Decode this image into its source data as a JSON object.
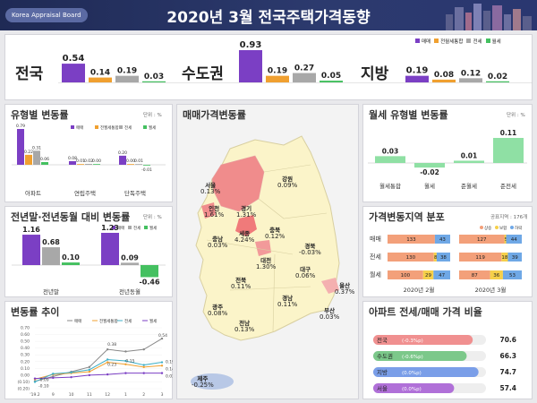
{
  "header": {
    "badge": "Korea Appraisal Board",
    "title": "2020년 3월  전국주택가격동향"
  },
  "colors": {
    "sale": "#7b3fc4",
    "jeonse_sale": "#f0a030",
    "jeonse": "#a8a8a8",
    "monthly": "#44c060"
  },
  "legend": {
    "sale": "매매",
    "jeonse_sale": "전월세통합",
    "jeonse": "전세",
    "monthly": "월세"
  },
  "summary": [
    {
      "region": "전국",
      "values": [
        0.54,
        0.14,
        0.19,
        0.03
      ]
    },
    {
      "region": "수도권",
      "values": [
        0.93,
        0.19,
        0.27,
        0.05
      ]
    },
    {
      "region": "지방",
      "values": [
        0.19,
        0.08,
        0.12,
        0.02
      ]
    }
  ],
  "type_change": {
    "title": "유형별 변동률",
    "unit": "단위 : %",
    "chart_data": {
      "type": "bar",
      "categories": [
        "아파트",
        "연립주택",
        "단독주택"
      ],
      "series": [
        {
          "name": "매매",
          "values": [
            0.79,
            0.08,
            0.2
          ]
        },
        {
          "name": "전월세통합",
          "values": [
            0.22,
            0.01,
            0.0
          ]
        },
        {
          "name": "전세",
          "values": [
            0.31,
            0.02,
            0.01
          ]
        },
        {
          "name": "월세",
          "values": [
            0.06,
            0.0,
            -0.01
          ]
        }
      ]
    }
  },
  "year_change": {
    "title": "전년말·전년동월 대비 변동률",
    "unit": "단위 : %",
    "chart_data": {
      "type": "bar",
      "categories": [
        "전년말",
        "전년동월"
      ],
      "series": [
        {
          "name": "매매",
          "values": [
            1.16,
            1.23
          ]
        },
        {
          "name": "전세",
          "values": [
            0.68,
            0.09
          ]
        },
        {
          "name": "월세",
          "values": [
            0.1,
            -0.46
          ]
        }
      ]
    }
  },
  "trend": {
    "title": "변동률 추이",
    "chart_data": {
      "type": "line",
      "categories": [
        "'19.2",
        "9",
        "10",
        "11",
        "12",
        "1",
        "2",
        "3"
      ],
      "yticks": [
        "0.70",
        "0.60",
        "0.50",
        "0.40",
        "0.30",
        "0.20",
        "0.10",
        "0.00",
        "(0.10)",
        "(0.20)"
      ],
      "ylim": [
        -0.2,
        0.7
      ],
      "series": [
        {
          "name": "매매",
          "values": [
            -0.09,
            -0.02,
            0.05,
            0.12,
            0.38,
            0.35,
            0.38,
            0.54
          ]
        },
        {
          "name": "전월세통합",
          "values": [
            -0.06,
            0.01,
            0.03,
            0.05,
            0.19,
            0.16,
            0.12,
            0.14
          ]
        },
        {
          "name": "전세",
          "values": [
            -0.1,
            0.02,
            0.04,
            0.08,
            0.23,
            0.21,
            0.15,
            0.19
          ]
        },
        {
          "name": "월세",
          "values": [
            -0.05,
            -0.04,
            -0.03,
            0.0,
            0.01,
            0.03,
            0.03,
            0.03
          ]
        }
      ],
      "data_labels": [
        "0.54",
        "0.38",
        "0.23",
        "0.15",
        "0.19",
        "0.14",
        "0.03",
        "-0.09",
        "-0.10"
      ]
    }
  },
  "map": {
    "title": "매매가격변동률",
    "regions": [
      {
        "name": "서울",
        "value": "0.13%"
      },
      {
        "name": "인천",
        "value": "1.61%"
      },
      {
        "name": "경기",
        "value": "1.31%"
      },
      {
        "name": "강원",
        "value": "0.09%"
      },
      {
        "name": "충남",
        "value": "0.03%"
      },
      {
        "name": "세종",
        "value": "4.24%"
      },
      {
        "name": "충북",
        "value": "0.12%"
      },
      {
        "name": "대전",
        "value": "1.30%"
      },
      {
        "name": "경북",
        "value": "-0.03%"
      },
      {
        "name": "대구",
        "value": "0.06%"
      },
      {
        "name": "전북",
        "value": "0.11%"
      },
      {
        "name": "울산",
        "value": "0.37%"
      },
      {
        "name": "광주",
        "value": "0.08%"
      },
      {
        "name": "경남",
        "value": "0.11%"
      },
      {
        "name": "부산",
        "value": "0.03%"
      },
      {
        "name": "전남",
        "value": "0.13%"
      },
      {
        "name": "제주",
        "value": "-0.25%"
      }
    ]
  },
  "monthly_type": {
    "title": "월세 유형별 변동률",
    "unit": "단위 : %",
    "chart_data": {
      "type": "bar",
      "categories": [
        "월세통합",
        "월세",
        "준월세",
        "준전세"
      ],
      "values": [
        0.03,
        -0.02,
        0.01,
        0.11
      ]
    }
  },
  "distribution": {
    "title": "가격변동지역 분포",
    "unit": "공표지역 : 176개",
    "legend": [
      "상승",
      "보합",
      "하락"
    ],
    "periods": [
      "2020년 2월",
      "2020년 3월"
    ],
    "rows": [
      {
        "label": "매매",
        "feb": [
          133,
          0,
          43
        ],
        "mar": [
          127,
          5,
          44
        ]
      },
      {
        "label": "전세",
        "feb": [
          130,
          8,
          38
        ],
        "mar": [
          119,
          18,
          39
        ]
      },
      {
        "label": "월세",
        "feb": [
          100,
          29,
          47
        ],
        "mar": [
          87,
          36,
          53
        ]
      }
    ]
  },
  "apt_ratio": {
    "title": "아파트 전세/매매 가격 비율",
    "rows": [
      {
        "label": "전국",
        "change": "(-0.3%p)",
        "value": 70.6
      },
      {
        "label": "수도권",
        "change": "(-0.6%p)",
        "value": 66.3
      },
      {
        "label": "지방",
        "change": "(0.0%p)",
        "value": 74.7
      },
      {
        "label": "서울",
        "change": "(0.0%p)",
        "value": 57.4
      }
    ]
  }
}
